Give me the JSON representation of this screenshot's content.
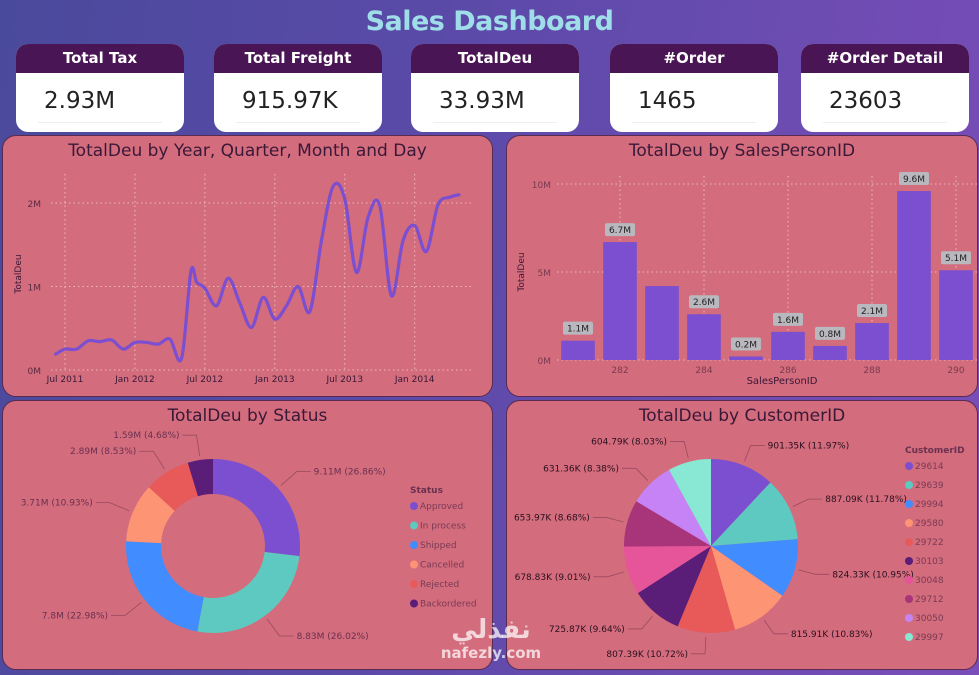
{
  "header": {
    "title": "Sales Dashboard"
  },
  "kpis": [
    {
      "label": "Total Tax",
      "value": "2.93M"
    },
    {
      "label": "Total Freight",
      "value": "915.97K"
    },
    {
      "label": "TotalDeu",
      "value": "33.93M"
    },
    {
      "label": "#Order",
      "value": "1465"
    },
    {
      "label": "#Order Detail",
      "value": "23603"
    }
  ],
  "colors": {
    "panel_bg": "#d36c7c",
    "kpi_header": "#4a1554",
    "series": "#7b4fd0",
    "title_text": "#9fdde8"
  },
  "watermark": {
    "arabic": "نفذلي",
    "latin": "nafezly.com"
  },
  "chart_data": [
    {
      "id": "line",
      "type": "line",
      "title": "TotalDeu by Year, Quarter, Month and Day",
      "xlabel": "",
      "ylabel": "TotalDeu",
      "x_ticks": [
        "Jul 2011",
        "Jan 2012",
        "Jul 2012",
        "Jan 2013",
        "Jul 2013",
        "Jan 2014"
      ],
      "y_ticks": [
        "0M",
        "1M",
        "2M"
      ],
      "ylim": [
        0,
        2.3
      ],
      "x_unit": "months since Jul 2011",
      "grid": true,
      "x": [
        -0.8,
        0,
        1,
        2,
        3,
        4,
        5,
        6,
        7,
        8,
        9,
        10,
        10.8,
        11.3,
        12,
        13,
        14,
        15,
        16,
        17,
        18,
        19,
        20,
        21,
        22,
        23,
        24,
        25,
        26,
        27,
        28,
        29,
        30,
        31,
        32,
        33,
        33.8
      ],
      "values": [
        0.19,
        0.25,
        0.25,
        0.35,
        0.34,
        0.36,
        0.25,
        0.33,
        0.33,
        0.31,
        0.37,
        0.14,
        1.18,
        1.05,
        0.98,
        0.77,
        1.1,
        0.8,
        0.51,
        0.87,
        0.61,
        0.77,
        1.0,
        0.7,
        1.55,
        2.2,
        2.05,
        1.17,
        1.83,
        1.97,
        0.89,
        1.55,
        1.73,
        1.42,
        1.98,
        2.07,
        2.1
      ],
      "legend": null
    },
    {
      "id": "bar",
      "type": "bar",
      "title": "TotalDeu by SalesPersonID",
      "xlabel": "SalesPersonID",
      "ylabel": "TotalDeu",
      "categories": [
        "281",
        "282",
        "283",
        "284",
        "285",
        "286",
        "287",
        "288",
        "289",
        "290"
      ],
      "x_tick_labels": [
        "",
        "282",
        "",
        "284",
        "",
        "286",
        "",
        "288",
        "",
        "290"
      ],
      "values": [
        1.1,
        6.7,
        4.2,
        2.6,
        0.2,
        1.6,
        0.8,
        2.1,
        9.6,
        5.1
      ],
      "data_labels": [
        "1.1M",
        "6.7M",
        "",
        "2.6M",
        "0.2M",
        "1.6M",
        "0.8M",
        "2.1M",
        "9.6M",
        "5.1M"
      ],
      "y_ticks": [
        "0M",
        "5M",
        "10M"
      ],
      "ylim": [
        0,
        10
      ],
      "grid": true
    },
    {
      "id": "donut",
      "type": "pie",
      "subtype": "donut",
      "title": "TotalDeu by Status",
      "legend_title": "Status",
      "legend_position": "right",
      "slices": [
        {
          "label": "Approved",
          "value": 9.11,
          "text": "9.11M (26.86%)",
          "color": "#7b4fd0"
        },
        {
          "label": "In process",
          "value": 8.83,
          "text": "8.83M (26.02%)",
          "color": "#5ec9c0"
        },
        {
          "label": "Shipped",
          "value": 7.8,
          "text": "7.8M (22.98%)",
          "color": "#418cff"
        },
        {
          "label": "Cancelled",
          "value": 3.71,
          "text": "3.71M (10.93%)",
          "color": "#fd9473"
        },
        {
          "label": "Rejected",
          "value": 2.89,
          "text": "2.89M (8.53%)",
          "color": "#e85a5a"
        },
        {
          "label": "Backordered",
          "value": 1.59,
          "text": "1.59M (4.68%)",
          "color": "#5a1d78"
        }
      ]
    },
    {
      "id": "pie",
      "type": "pie",
      "title": "TotalDeu by CustomerID",
      "legend_title": "CustomerID",
      "legend_position": "right",
      "slices": [
        {
          "label": "29614",
          "value": 901.35,
          "text": "901.35K (11.97%)",
          "color": "#7b4fd0"
        },
        {
          "label": "29639",
          "value": 887.09,
          "text": "887.09K (11.78%)",
          "color": "#5ec9c0"
        },
        {
          "label": "29994",
          "value": 824.33,
          "text": "824.33K (10.95%)",
          "color": "#418cff"
        },
        {
          "label": "29580",
          "value": 815.91,
          "text": "815.91K (10.83%)",
          "color": "#fd9473"
        },
        {
          "label": "29722",
          "value": 807.39,
          "text": "807.39K (10.72%)",
          "color": "#e85a5a"
        },
        {
          "label": "30103",
          "value": 725.87,
          "text": "725.87K (9.64%)",
          "color": "#5a1d78"
        },
        {
          "label": "30048",
          "value": 678.83,
          "text": "678.83K (9.01%)",
          "color": "#e6559a"
        },
        {
          "label": "29712",
          "value": 653.97,
          "text": "653.97K (8.68%)",
          "color": "#a8347a"
        },
        {
          "label": "30050",
          "value": 631.36,
          "text": "631.36K (8.38%)",
          "color": "#c583f5"
        },
        {
          "label": "29997",
          "value": 604.79,
          "text": "604.79K (8.03%)",
          "color": "#88e8d4"
        }
      ]
    }
  ]
}
